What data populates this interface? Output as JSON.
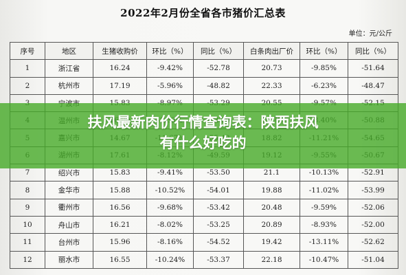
{
  "title": "2022年2月份全省各市猪价汇总表",
  "unit": "单位：元/公斤",
  "headers": [
    "序号",
    "地区",
    "生猪收购价",
    "环比（%）",
    "同比（%）",
    "白条肉出厂价",
    "环比（%）",
    "同比（%）"
  ],
  "rows": [
    [
      "1",
      "浙江省",
      "16.24",
      "-9.42%",
      "-52.78",
      "20.73",
      "-9.85%",
      "-51.64"
    ],
    [
      "2",
      "杭州市",
      "17.19",
      "-5.96%",
      "-48.82",
      "22.33",
      "-6.23%",
      "-48.47"
    ],
    [
      "3",
      "宁波市",
      "15.83",
      "-8.97%",
      "-53.29",
      "20.55",
      "-9.57%",
      "-52.15"
    ],
    [
      "4",
      "温州市",
      "16.80",
      "-8.33%",
      "-52.70",
      "21.79",
      "-8.40%",
      "-50.88"
    ],
    [
      "5",
      "嘉兴市",
      "14.67",
      "-11.67%",
      "-55.42",
      "18.82",
      "-11.21%",
      "-54.65"
    ],
    [
      "6",
      "湖州市",
      "17.61",
      "-8.12%",
      "-49.59",
      "19.12",
      "-9.55%",
      "-50.67"
    ],
    [
      "7",
      "绍兴市",
      "15.83",
      "-9.41%",
      "-53.50",
      "21.1",
      "-10.13%",
      "-52.91"
    ],
    [
      "8",
      "金华市",
      "15.88",
      "-10.52%",
      "-54.01",
      "19.88",
      "-11.02%",
      "-53.99"
    ],
    [
      "9",
      "衢州市",
      "16.56",
      "-9.68%",
      "-53.42",
      "20.48",
      "-9.59%",
      "-52.06"
    ],
    [
      "10",
      "舟山市",
      "16.21",
      "-8.02%",
      "-53.25",
      "20.89",
      "-8.93%",
      "-52.00"
    ],
    [
      "11",
      "台州市",
      "15.96",
      "-8.16%",
      "-54.52",
      "19.42",
      "-13.11%",
      "-52.62"
    ],
    [
      "12",
      "丽水市",
      "16.55",
      "-10.24%",
      "-53.37",
      "22.18",
      "-10.47%",
      "-51.04"
    ]
  ],
  "banner": {
    "line1": "扶风最新肉价行情查询表：陕西扶风",
    "line2": "有什么好吃的"
  }
}
